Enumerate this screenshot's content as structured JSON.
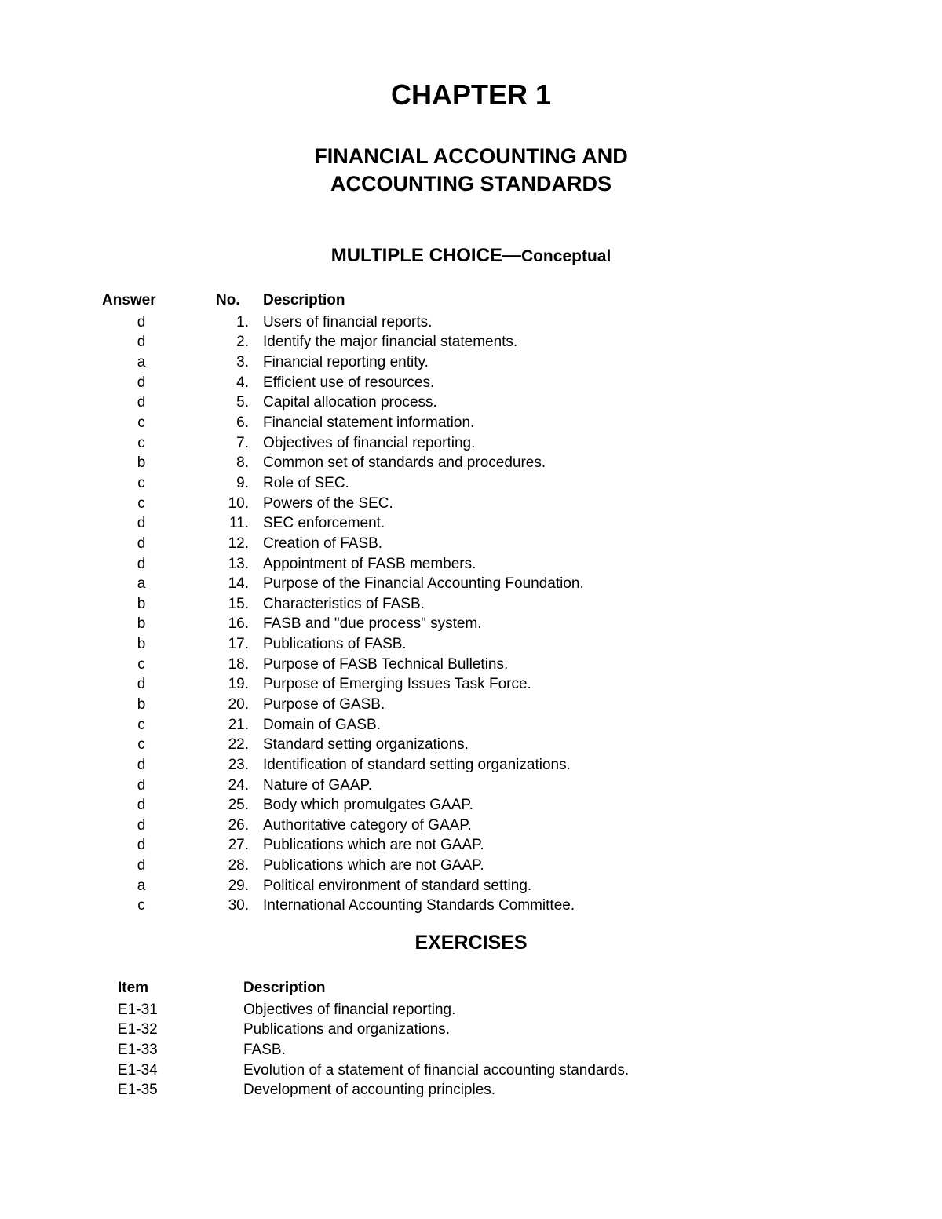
{
  "chapter_title": "CHAPTER 1",
  "chapter_subtitle_line1": "FINANCIAL ACCOUNTING AND",
  "chapter_subtitle_line2": "ACCOUNTING STANDARDS",
  "mc_heading_main": "MULTIPLE CHOICE—",
  "mc_heading_sub": "Conceptual",
  "mc_headers": {
    "answer": "Answer",
    "no": "No.",
    "desc": "Description"
  },
  "mc_rows": [
    {
      "answer": "d",
      "no": "1.",
      "desc": "Users of financial reports."
    },
    {
      "answer": "d",
      "no": "2.",
      "desc": "Identify the major financial statements."
    },
    {
      "answer": "a",
      "no": "3.",
      "desc": "Financial reporting entity."
    },
    {
      "answer": "d",
      "no": "4.",
      "desc": "Efficient use of resources."
    },
    {
      "answer": "d",
      "no": "5.",
      "desc": "Capital allocation process."
    },
    {
      "answer": "c",
      "no": "6.",
      "desc": "Financial statement information."
    },
    {
      "answer": "c",
      "no": "7.",
      "desc": "Objectives of financial reporting."
    },
    {
      "answer": "b",
      "no": "8.",
      "desc": "Common set of standards and procedures."
    },
    {
      "answer": "c",
      "no": "9.",
      "desc": "Role of SEC."
    },
    {
      "answer": "c",
      "no": "10.",
      "desc": "Powers of the SEC."
    },
    {
      "answer": "d",
      "no": "11.",
      "desc": "SEC enforcement."
    },
    {
      "answer": "d",
      "no": "12.",
      "desc": "Creation of FASB."
    },
    {
      "answer": "d",
      "no": "13.",
      "desc": "Appointment of FASB members."
    },
    {
      "answer": "a",
      "no": "14.",
      "desc": "Purpose of the Financial Accounting Foundation."
    },
    {
      "answer": "b",
      "no": "15.",
      "desc": "Characteristics of FASB."
    },
    {
      "answer": "b",
      "no": "16.",
      "desc": "FASB and \"due process\" system."
    },
    {
      "answer": "b",
      "no": "17.",
      "desc": "Publications of FASB."
    },
    {
      "answer": "c",
      "no": "18.",
      "desc": "Purpose of FASB Technical Bulletins."
    },
    {
      "answer": "d",
      "no": "19.",
      "desc": "Purpose of Emerging Issues Task Force."
    },
    {
      "answer": "b",
      "no": "20.",
      "desc": "Purpose of GASB."
    },
    {
      "answer": "c",
      "no": "21.",
      "desc": "Domain of GASB."
    },
    {
      "answer": "c",
      "no": "22.",
      "desc": "Standard setting organizations."
    },
    {
      "answer": "d",
      "no": "23.",
      "desc": "Identification of standard setting organizations."
    },
    {
      "answer": "d",
      "no": "24.",
      "desc": "Nature of GAAP."
    },
    {
      "answer": "d",
      "no": "25.",
      "desc": "Body which promulgates GAAP."
    },
    {
      "answer": "d",
      "no": "26.",
      "desc": "Authoritative category of GAAP."
    },
    {
      "answer": "d",
      "no": "27.",
      "desc": "Publications which are not GAAP."
    },
    {
      "answer": "d",
      "no": "28.",
      "desc": "Publications which are not GAAP."
    },
    {
      "answer": "a",
      "no": "29.",
      "desc": "Political environment of standard setting."
    },
    {
      "answer": "c",
      "no": "30.",
      "desc": "International Accounting Standards Committee."
    }
  ],
  "exercises_heading": "EXERCISES",
  "ex_headers": {
    "item": "Item",
    "desc": "Description"
  },
  "ex_rows": [
    {
      "item": "E1-31",
      "desc": "Objectives of financial reporting."
    },
    {
      "item": "E1-32",
      "desc": "Publications and organizations."
    },
    {
      "item": "E1-33",
      "desc": "FASB."
    },
    {
      "item": "E1-34",
      "desc": "Evolution of a statement of financial accounting standards."
    },
    {
      "item": "E1-35",
      "desc": "Development of accounting principles."
    }
  ],
  "colors": {
    "background": "#ffffff",
    "text": "#000000"
  },
  "typography": {
    "font_family": "Arial",
    "title_size_pt": 27,
    "subtitle_size_pt": 20,
    "section_size_pt": 18,
    "body_size_pt": 14
  }
}
